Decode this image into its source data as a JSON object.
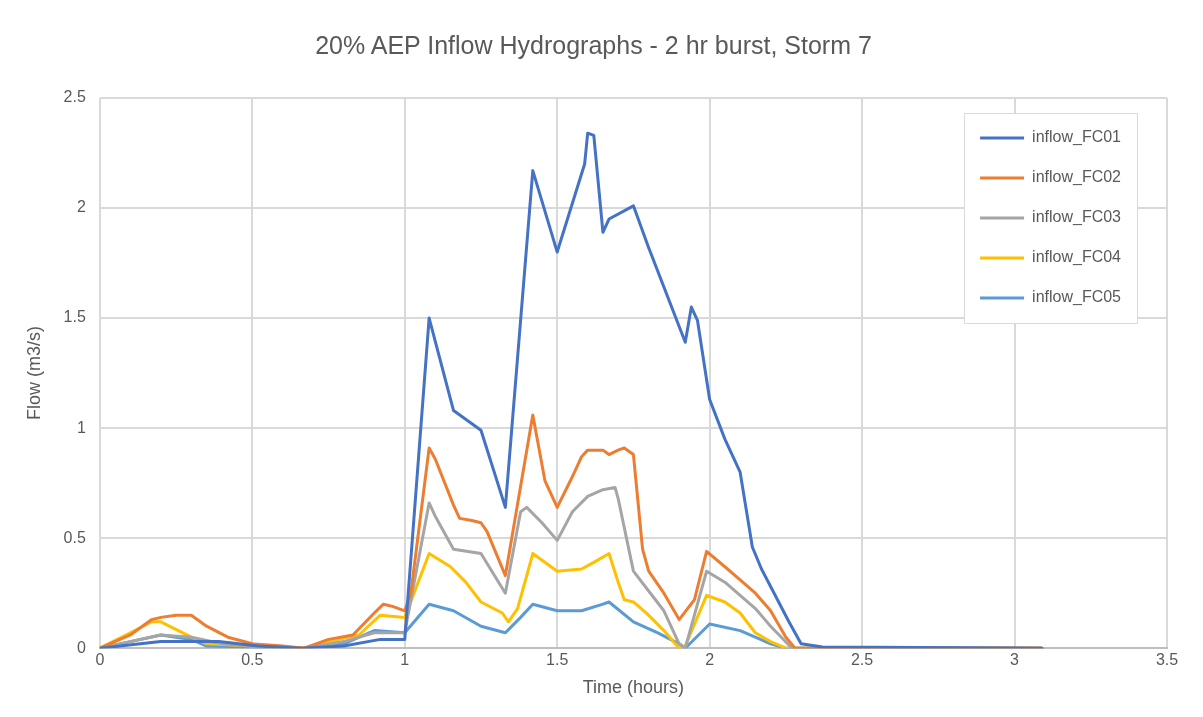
{
  "chart_data": {
    "type": "line",
    "title": "20% AEP Inflow Hydrographs - 2 hr burst, Storm 7",
    "xlabel": "Time (hours)",
    "ylabel": "Flow (m3/s)",
    "xlim": [
      0,
      3.5
    ],
    "xticks": [
      0,
      0.5,
      1,
      1.5,
      2,
      2.5,
      3,
      3.5
    ],
    "ylim": [
      0,
      2.5
    ],
    "yticks": [
      0,
      0.5,
      1,
      1.5,
      2,
      2.5
    ],
    "grid": true,
    "legend": "top right",
    "marker": "none",
    "line_style": "solid",
    "series": [
      {
        "name": "inflow_FC01",
        "color": "#4472c4",
        "x": [
          0,
          0.2,
          0.39,
          0.52,
          0.66,
          0.8,
          0.92,
          1.0,
          1.08,
          1.16,
          1.25,
          1.33,
          1.42,
          1.5,
          1.59,
          1.6,
          1.62,
          1.65,
          1.67,
          1.75,
          1.8,
          1.92,
          1.94,
          1.96,
          2.0,
          2.05,
          2.1,
          2.14,
          2.17,
          2.26,
          2.3,
          2.37,
          3.09
        ],
        "values": [
          0,
          0.03,
          0.03,
          0.01,
          0,
          0.01,
          0.04,
          0.04,
          1.5,
          1.08,
          0.99,
          0.64,
          2.17,
          1.8,
          2.2,
          2.34,
          2.33,
          1.89,
          1.95,
          2.01,
          1.82,
          1.39,
          1.55,
          1.49,
          1.13,
          0.95,
          0.8,
          0.46,
          0.36,
          0.12,
          0.02,
          0.005,
          0
        ]
      },
      {
        "name": "inflow_FC02",
        "color": "#ed7d31",
        "x": [
          0,
          0.1,
          0.17,
          0.2,
          0.25,
          0.3,
          0.35,
          0.42,
          0.5,
          0.6,
          0.67,
          0.75,
          0.83,
          0.9,
          0.93,
          0.96,
          1.0,
          1.02,
          1.08,
          1.1,
          1.16,
          1.18,
          1.22,
          1.25,
          1.27,
          1.33,
          1.42,
          1.46,
          1.48,
          1.5,
          1.55,
          1.58,
          1.6,
          1.65,
          1.67,
          1.7,
          1.72,
          1.75,
          1.78,
          1.8,
          1.85,
          1.9,
          1.95,
          1.99,
          2.05,
          2.1,
          2.15,
          2.2,
          2.25,
          2.28,
          3.09
        ],
        "values": [
          0,
          0.06,
          0.13,
          0.14,
          0.15,
          0.15,
          0.1,
          0.05,
          0.02,
          0.01,
          0,
          0.04,
          0.06,
          0.16,
          0.2,
          0.19,
          0.17,
          0.25,
          0.91,
          0.86,
          0.65,
          0.59,
          0.58,
          0.57,
          0.53,
          0.33,
          1.06,
          0.76,
          0.7,
          0.64,
          0.78,
          0.87,
          0.9,
          0.9,
          0.88,
          0.9,
          0.91,
          0.88,
          0.45,
          0.35,
          0.25,
          0.13,
          0.22,
          0.44,
          0.37,
          0.31,
          0.25,
          0.17,
          0.05,
          0,
          0
        ]
      },
      {
        "name": "inflow_FC03",
        "color": "#a5a5a5",
        "x": [
          0,
          0.1,
          0.2,
          0.3,
          0.4,
          0.5,
          0.67,
          0.8,
          0.9,
          1.0,
          1.08,
          1.1,
          1.16,
          1.25,
          1.33,
          1.38,
          1.4,
          1.45,
          1.5,
          1.55,
          1.6,
          1.65,
          1.69,
          1.7,
          1.75,
          1.8,
          1.85,
          1.9,
          1.92,
          1.99,
          2.05,
          2.1,
          2.15,
          2.2,
          2.27,
          3.09
        ],
        "values": [
          0,
          0.03,
          0.06,
          0.05,
          0.02,
          0.01,
          0,
          0.03,
          0.07,
          0.07,
          0.66,
          0.6,
          0.45,
          0.43,
          0.25,
          0.62,
          0.64,
          0.57,
          0.49,
          0.62,
          0.69,
          0.72,
          0.73,
          0.68,
          0.35,
          0.26,
          0.17,
          0.02,
          0,
          0.35,
          0.3,
          0.24,
          0.18,
          0.1,
          0,
          0
        ]
      },
      {
        "name": "inflow_FC04",
        "color": "#ffc000",
        "x": [
          0,
          0.1,
          0.17,
          0.2,
          0.3,
          0.35,
          0.5,
          0.67,
          0.75,
          0.85,
          0.92,
          1.0,
          1.08,
          1.15,
          1.2,
          1.25,
          1.32,
          1.34,
          1.37,
          1.42,
          1.5,
          1.58,
          1.62,
          1.67,
          1.7,
          1.72,
          1.75,
          1.8,
          1.85,
          1.9,
          1.92,
          1.99,
          2.05,
          2.1,
          2.15,
          2.2,
          2.25,
          3.09
        ],
        "values": [
          0,
          0.07,
          0.12,
          0.12,
          0.05,
          0.02,
          0.01,
          0,
          0.03,
          0.06,
          0.15,
          0.14,
          0.43,
          0.37,
          0.3,
          0.21,
          0.16,
          0.12,
          0.18,
          0.43,
          0.35,
          0.36,
          0.39,
          0.43,
          0.3,
          0.22,
          0.21,
          0.15,
          0.08,
          0,
          0.01,
          0.24,
          0.21,
          0.16,
          0.07,
          0.03,
          0,
          0
        ]
      },
      {
        "name": "inflow_FC05",
        "color": "#5b9bd5",
        "x": [
          0,
          0.1,
          0.2,
          0.3,
          0.35,
          0.5,
          0.67,
          0.8,
          0.9,
          1.0,
          1.08,
          1.16,
          1.25,
          1.33,
          1.38,
          1.42,
          1.5,
          1.58,
          1.65,
          1.67,
          1.75,
          1.83,
          1.9,
          1.92,
          2.0,
          2.1,
          2.2,
          2.25,
          3.09
        ],
        "values": [
          0,
          0.03,
          0.06,
          0.04,
          0.01,
          0.005,
          0,
          0.02,
          0.08,
          0.07,
          0.2,
          0.17,
          0.1,
          0.07,
          0.14,
          0.2,
          0.17,
          0.17,
          0.2,
          0.21,
          0.12,
          0.07,
          0.02,
          0,
          0.11,
          0.08,
          0.02,
          0,
          0
        ]
      }
    ]
  }
}
